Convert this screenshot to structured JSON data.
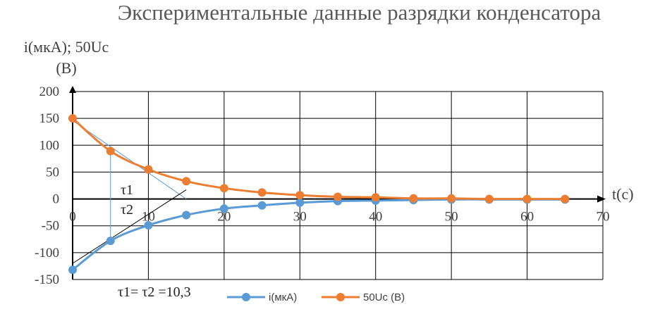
{
  "chart_data": {
    "type": "scatter",
    "title": "Экспериментальные данные разрядки конденсатора",
    "ylabel_line1": "i(мкА); 50Uc",
    "ylabel_line2": "(В)",
    "xlabel": "t(c)",
    "xlim": [
      0,
      70
    ],
    "ylim": [
      -150,
      200
    ],
    "x_ticks": [
      0,
      10,
      20,
      30,
      40,
      50,
      60,
      70
    ],
    "y_ticks": [
      200,
      150,
      100,
      50,
      0,
      -50,
      -100,
      -150
    ],
    "grid": true,
    "legend_position": "bottom",
    "series": [
      {
        "name": "i(мкА)",
        "color": "#5b9bd5",
        "x": [
          0,
          5,
          10,
          15,
          20,
          25,
          30,
          35,
          40,
          45,
          50,
          55,
          60,
          65
        ],
        "y": [
          -132,
          -78,
          -49,
          -30,
          -18,
          -12,
          -7,
          -4,
          -3,
          -2,
          -1,
          -1,
          -1,
          -1
        ]
      },
      {
        "name": "50Uc (В)",
        "color": "#ed7d31",
        "x": [
          0,
          5,
          10,
          15,
          20,
          25,
          30,
          35,
          40,
          45,
          50,
          55,
          60,
          65
        ],
        "y": [
          150,
          89,
          55,
          33,
          20,
          12,
          7,
          4,
          3,
          1,
          1,
          0,
          0,
          0
        ]
      }
    ],
    "annotations": {
      "tau1_label": "τ1",
      "tau2_label": "τ2",
      "result": "τ1= τ2 =10,3"
    },
    "tangent_lines": [
      {
        "color": "#5b9bd5",
        "x": [
          0,
          15
        ],
        "y": [
          146,
          0
        ]
      },
      {
        "color": "#000000",
        "x": [
          0,
          15
        ],
        "y": [
          -120,
          17
        ]
      }
    ],
    "helper_lines": [
      {
        "color": "#5b9bd5",
        "x": [
          5,
          5
        ],
        "y": [
          89,
          -78
        ]
      }
    ]
  }
}
